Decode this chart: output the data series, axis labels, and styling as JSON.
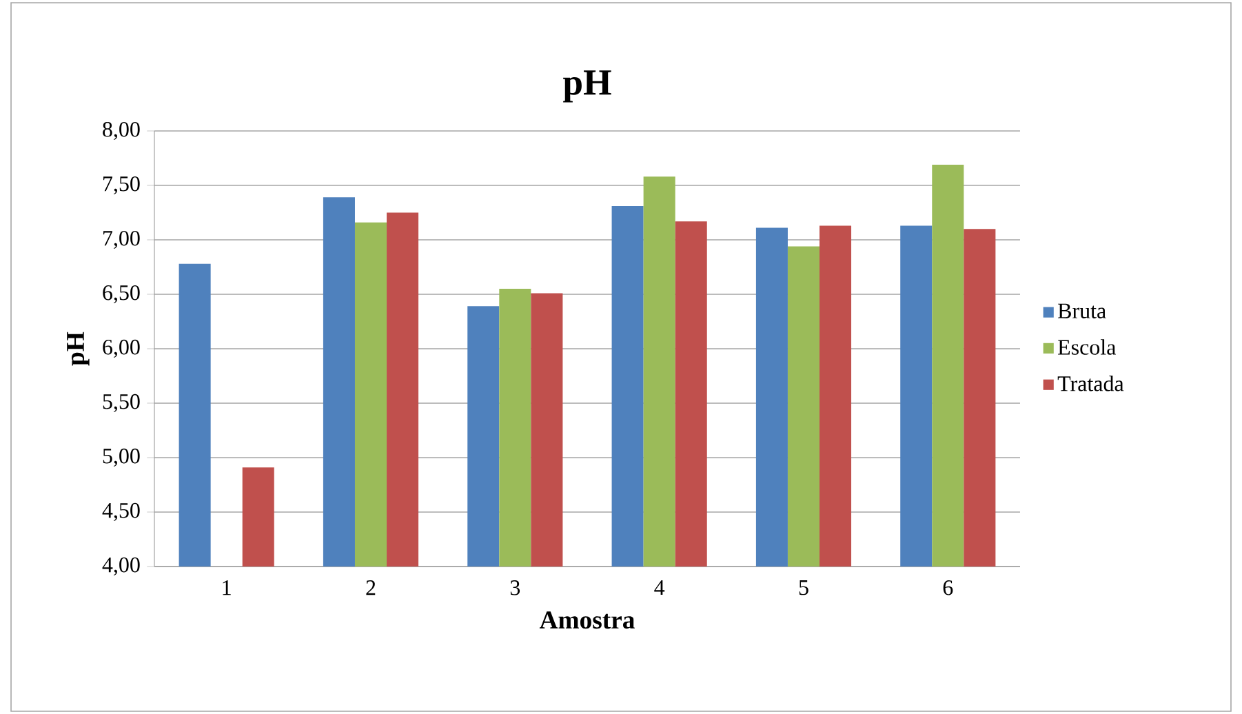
{
  "chart_data": {
    "type": "bar",
    "title": "pH",
    "xlabel": "Amostra",
    "ylabel": "pH",
    "categories": [
      "1",
      "2",
      "3",
      "4",
      "5",
      "6"
    ],
    "series": [
      {
        "name": "Bruta",
        "color": "#4f81bd",
        "values": [
          6.78,
          7.39,
          6.39,
          7.31,
          7.11,
          7.13
        ]
      },
      {
        "name": "Escola",
        "color": "#9bbb59",
        "values": [
          null,
          7.16,
          6.55,
          7.58,
          6.94,
          7.69
        ]
      },
      {
        "name": "Tratada",
        "color": "#c0504d",
        "values": [
          4.91,
          7.25,
          6.51,
          7.17,
          7.13,
          7.1
        ]
      }
    ],
    "ylim": [
      4,
      8
    ],
    "yticks": [
      {
        "value": 4,
        "label": "4,00"
      },
      {
        "value": 4.5,
        "label": "4,50"
      },
      {
        "value": 5,
        "label": "5,00"
      },
      {
        "value": 5.5,
        "label": "5,50"
      },
      {
        "value": 6,
        "label": "6,00"
      },
      {
        "value": 6.5,
        "label": "6,50"
      },
      {
        "value": 7,
        "label": "7,00"
      },
      {
        "value": 7.5,
        "label": "7,50"
      },
      {
        "value": 8,
        "label": "8,00"
      }
    ],
    "grid": "y",
    "legend": "right"
  }
}
